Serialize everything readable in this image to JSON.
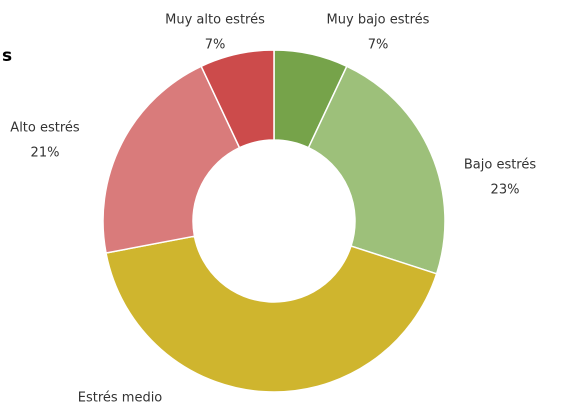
{
  "chart_data": {
    "type": "pie",
    "title": "s",
    "categories": [
      "Muy bajo estrés",
      "Bajo estrés",
      "Estrés medio",
      "Alto estrés",
      "Muy alto estrés"
    ],
    "values": [
      7,
      23,
      42,
      21,
      7
    ],
    "value_labels": [
      "7%",
      "23%",
      null,
      "21%",
      "7%"
    ],
    "colors": [
      "#76a34a",
      "#9dc07a",
      "#cfb52e",
      "#d97b7b",
      "#cc4b4b"
    ],
    "donut": true
  }
}
